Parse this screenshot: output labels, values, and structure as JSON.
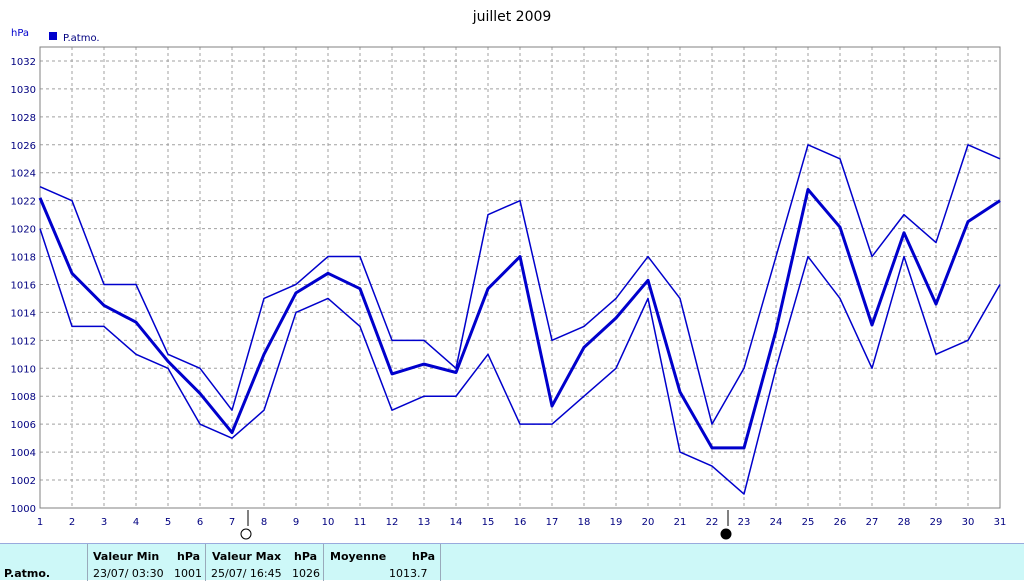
{
  "chart_data": {
    "type": "line",
    "title": "juillet 2009",
    "unit": "hPa",
    "x": [
      1,
      2,
      3,
      4,
      5,
      6,
      7,
      8,
      9,
      10,
      11,
      12,
      13,
      14,
      15,
      16,
      17,
      18,
      19,
      20,
      21,
      22,
      23,
      24,
      25,
      26,
      27,
      28,
      29,
      30,
      31
    ],
    "ylim": [
      1000,
      1033
    ],
    "yticks": [
      1000,
      1002,
      1004,
      1006,
      1008,
      1010,
      1012,
      1014,
      1016,
      1018,
      1020,
      1022,
      1024,
      1026,
      1028,
      1030,
      1032
    ],
    "grid": true,
    "legend": {
      "position": "top-left",
      "entries": [
        "P.atmo."
      ]
    },
    "series": [
      {
        "role": "max",
        "values": [
          1023,
          1022,
          1016,
          1016,
          1011,
          1010,
          1007,
          1015,
          1016,
          1018,
          1018,
          1012,
          1012,
          1010,
          1021,
          1022,
          1012,
          1013,
          1015,
          1018,
          1015,
          1006,
          1010,
          1018,
          1026,
          1025,
          1018,
          1021,
          1019,
          1026,
          1025
        ]
      },
      {
        "name": "P.atmo.",
        "role": "mean",
        "values": [
          1022.2,
          1016.8,
          1014.5,
          1013.3,
          1010.5,
          1008.2,
          1005.4,
          1011.0,
          1015.4,
          1016.8,
          1015.7,
          1009.6,
          1010.3,
          1009.7,
          1015.7,
          1018.0,
          1007.3,
          1011.5,
          1013.6,
          1016.3,
          1008.3,
          1004.3,
          1004.3,
          1012.7,
          1022.8,
          1020.1,
          1013.1,
          1019.7,
          1014.6,
          1020.5,
          1022.0
        ]
      },
      {
        "role": "min",
        "values": [
          1020,
          1013,
          1013,
          1011,
          1010,
          1006,
          1005,
          1007,
          1014,
          1015,
          1013,
          1007,
          1008,
          1008,
          1011,
          1006,
          1006,
          1008,
          1010,
          1015,
          1004,
          1003,
          1001,
          1010,
          1018,
          1015,
          1010,
          1018,
          1011,
          1012,
          1016
        ]
      }
    ],
    "moon_phases": [
      {
        "day": 7,
        "phase": "full-moon-icon"
      },
      {
        "day": 22,
        "phase": "new-moon-icon"
      }
    ],
    "line_color": "#0000cc",
    "grid_color": "#a0a0a0"
  },
  "stats": {
    "series_label": "P.atmo.",
    "min_header": "Valeur Min",
    "min_unit": "hPa",
    "min_date": "23/07/  03:30",
    "min_value": "1001",
    "max_header": "Valeur Max",
    "max_unit": "hPa",
    "max_date": "25/07/  16:45",
    "max_value": "1026",
    "avg_header": "Moyenne",
    "avg_unit": "hPa",
    "avg_value": "1013.7",
    "background": "#cdf8f8"
  }
}
